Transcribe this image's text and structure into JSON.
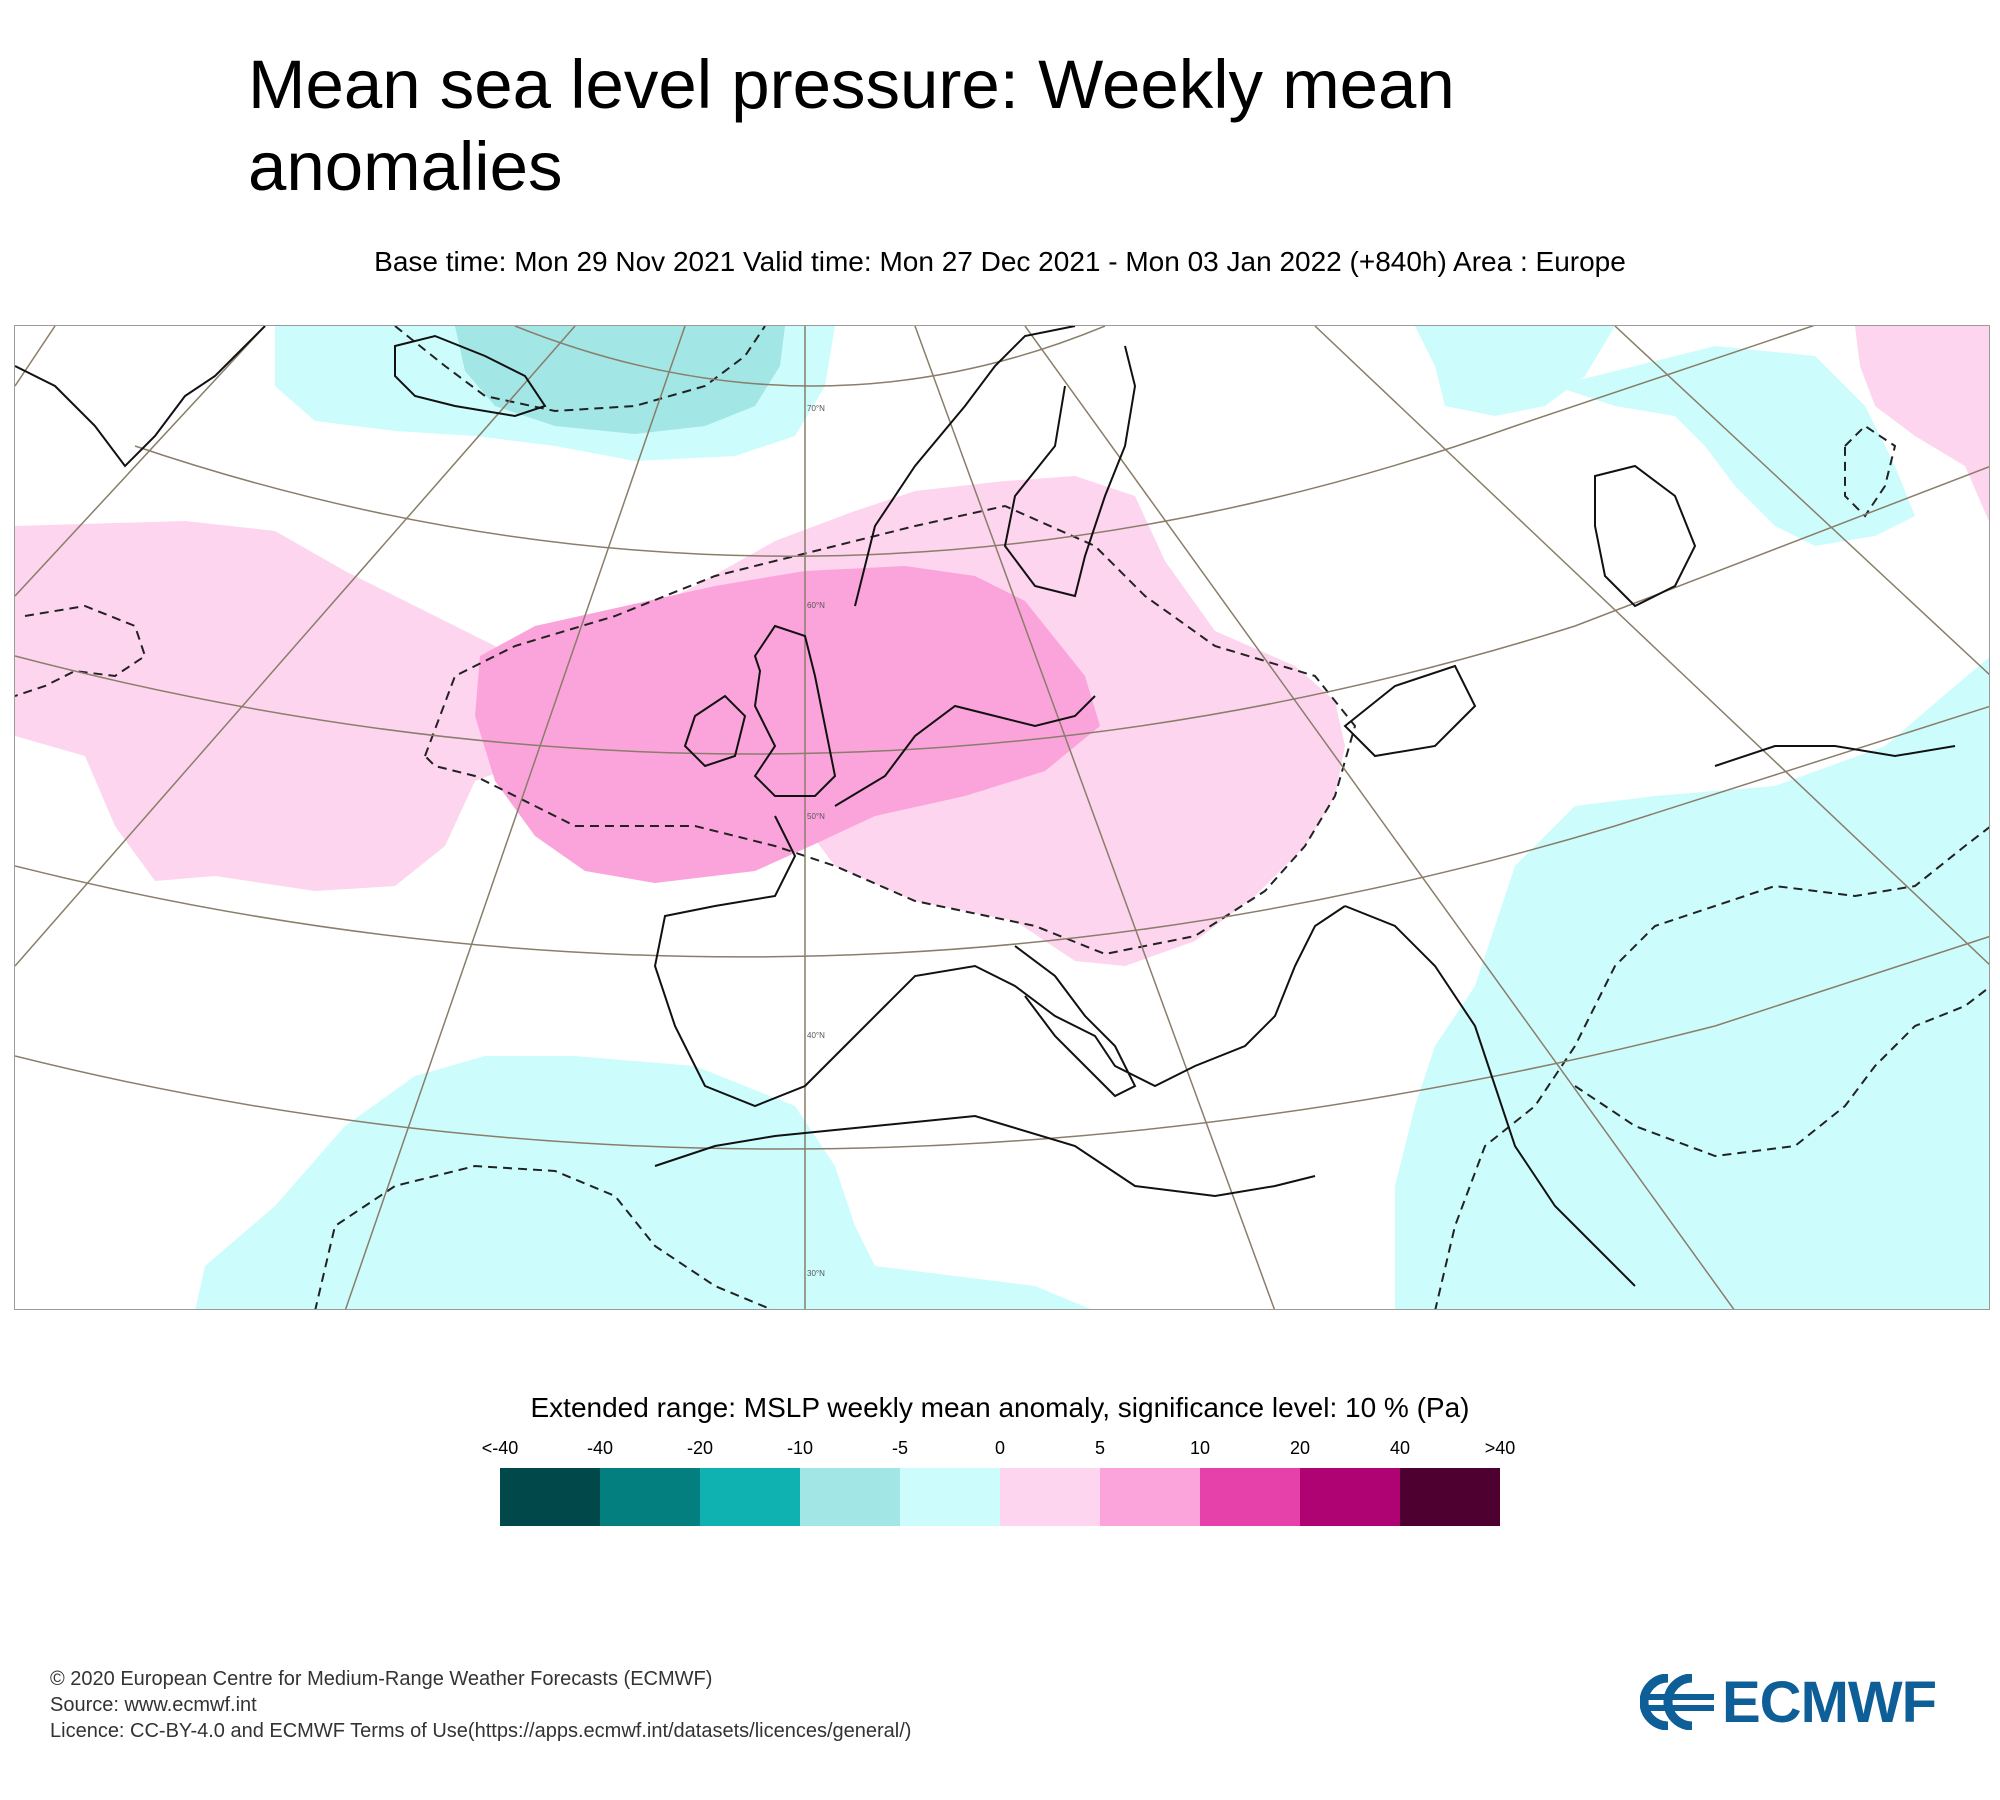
{
  "header": {
    "title": "Mean sea level pressure: Weekly mean anomalies",
    "subtitle": "Base time: Mon 29 Nov 2021 Valid time: Mon 27 Dec 2021 - Mon 03 Jan 2022 (+840h) Area : Europe"
  },
  "map": {
    "lat_labels": [
      "70°N",
      "60°N",
      "50°N",
      "40°N",
      "30°N"
    ],
    "colors": {
      "land_outline": "#111111",
      "graticule": "#8a7d6a",
      "significance_contour": "#222222"
    }
  },
  "legend": {
    "title": "Extended range: MSLP weekly mean anomaly, significance level: 10 % (Pa)",
    "ticks": [
      "<-40",
      "-40",
      "-20",
      "-10",
      "-5",
      "0",
      "5",
      "10",
      "20",
      "40",
      ">40"
    ],
    "colors": [
      "#00484a",
      "#027f7e",
      "#0fb1b1",
      "#a3e6e6",
      "#cdfcfc",
      "#fdd5ee",
      "#fba4dc",
      "#e640ab",
      "#af0373",
      "#4e0131"
    ]
  },
  "footer": {
    "line1": "© 2020 European Centre for Medium-Range Weather Forecasts (ECMWF)",
    "line2": "Source: www.ecmwf.int",
    "line3": "Licence: CC-BY-4.0 and ECMWF Terms of Use(https://apps.ecmwf.int/datasets/licences/general/)"
  },
  "logo": {
    "text": "ECMWF",
    "color": "#0e5e98"
  }
}
